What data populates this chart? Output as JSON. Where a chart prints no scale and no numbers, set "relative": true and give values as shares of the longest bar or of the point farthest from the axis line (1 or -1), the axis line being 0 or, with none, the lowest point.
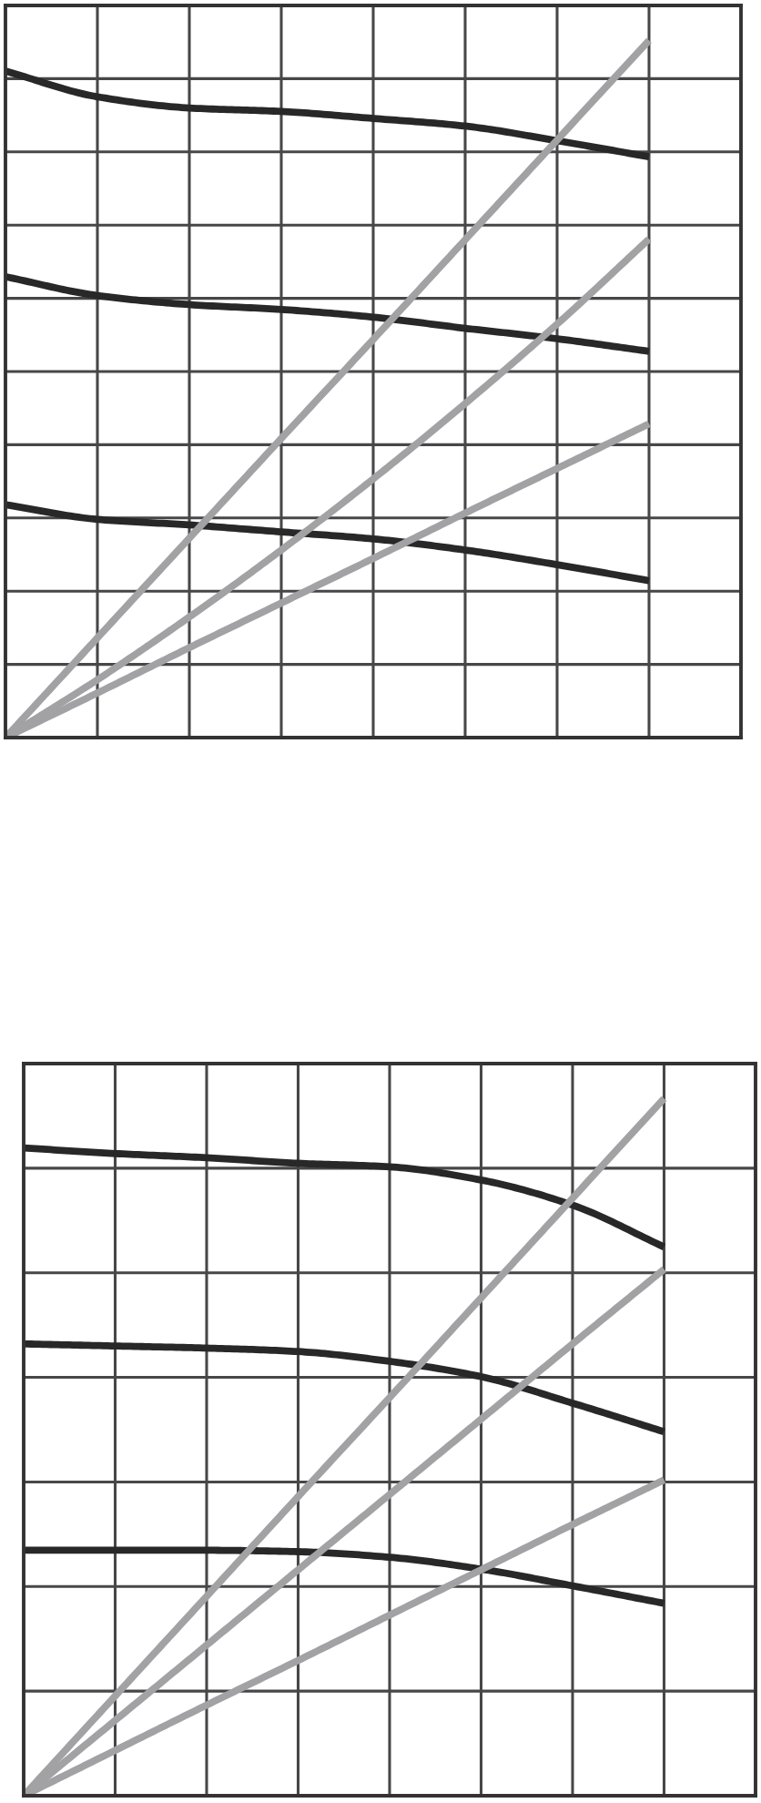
{
  "chart_data": [
    {
      "type": "line",
      "relative": true,
      "grid": true,
      "categories": [
        null,
        null,
        null,
        null,
        null,
        null,
        null,
        null,
        null
      ],
      "series": [
        {
          "color": "#282828",
          "values": [
            0.956,
            0.919,
            0.903,
            0.898,
            0.888,
            0.877,
            0.856,
            0.833,
            null
          ]
        },
        {
          "color": "#282828",
          "values": [
            0.661,
            0.634,
            0.621,
            0.614,
            0.603,
            0.587,
            0.572,
            0.554,
            null
          ]
        },
        {
          "color": "#282828",
          "values": [
            0.334,
            0.313,
            0.305,
            0.295,
            0.285,
            0.269,
            0.248,
            0.225,
            null
          ]
        },
        {
          "color": "#a2a2a4",
          "values": [
            0,
            0.143,
            0.286,
            0.429,
            0.571,
            0.714,
            0.857,
            1,
            null
          ]
        },
        {
          "color": "#a2a2a4",
          "values": [
            0,
            0.083,
            0.173,
            0.269,
            0.371,
            0.479,
            0.593,
            0.715,
            null
          ]
        },
        {
          "color": "#a2a2a4",
          "values": [
            0,
            0.064,
            0.129,
            0.193,
            0.257,
            0.322,
            0.386,
            0.45,
            null
          ]
        }
      ]
    },
    {
      "type": "line",
      "relative": true,
      "grid": true,
      "categories": [
        null,
        null,
        null,
        null,
        null,
        null,
        null,
        null,
        null
      ],
      "series": [
        {
          "color": "#282828",
          "values": [
            0.929,
            0.921,
            0.915,
            0.907,
            0.902,
            0.883,
            0.847,
            0.787,
            null
          ]
        },
        {
          "color": "#282828",
          "values": [
            0.648,
            0.645,
            0.642,
            0.637,
            0.623,
            0.601,
            0.563,
            0.522,
            null
          ]
        },
        {
          "color": "#282828",
          "values": [
            0.352,
            0.352,
            0.352,
            0.35,
            0.342,
            0.325,
            0.301,
            0.276,
            null
          ]
        },
        {
          "color": "#a2a2a4",
          "values": [
            0,
            0.143,
            0.286,
            0.429,
            0.571,
            0.714,
            0.857,
            1,
            null
          ]
        },
        {
          "color": "#a2a2a4",
          "values": [
            0,
            0.108,
            0.216,
            0.324,
            0.432,
            0.54,
            0.648,
            0.755,
            null
          ]
        },
        {
          "color": "#a2a2a4",
          "values": [
            0,
            0.065,
            0.13,
            0.194,
            0.259,
            0.324,
            0.389,
            0.453,
            null
          ]
        }
      ]
    }
  ]
}
